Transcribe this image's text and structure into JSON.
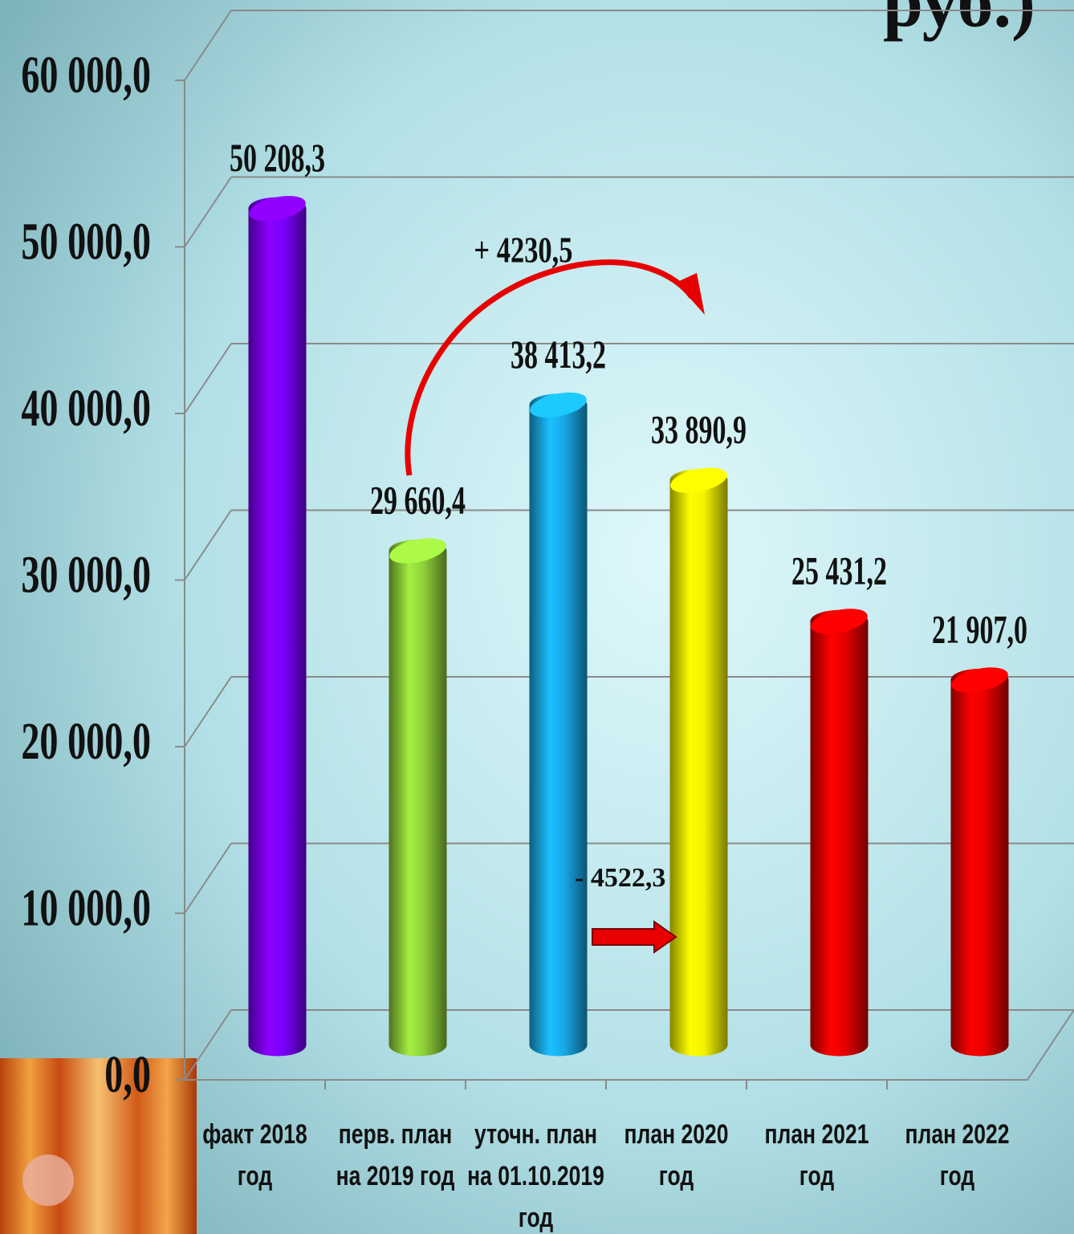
{
  "chart_data": {
    "type": "bar",
    "title": "руб.)",
    "categories": [
      [
        "факт 2018",
        "год"
      ],
      [
        "перв. план",
        "на 2019 год"
      ],
      [
        "уточн. план",
        "на 01.10.2019",
        "год"
      ],
      [
        "план 2020",
        "год"
      ],
      [
        "план 2021",
        "год"
      ],
      [
        "план 2022",
        "год"
      ]
    ],
    "series": [
      {
        "values": [
          50208.3,
          29660.4,
          38413.2,
          33890.9,
          25431.2,
          21907.0
        ],
        "value_labels": [
          "50 208,3",
          "29 660,4",
          "38 413,2",
          "33 890,9",
          "25 431,2",
          "21 907,0"
        ],
        "colors": [
          "#7a00ff",
          "#8fd03a",
          "#18a8e6",
          "#f2f200",
          "#e60000",
          "#e60000"
        ]
      }
    ],
    "ylim": [
      0,
      60000
    ],
    "yticks": [
      {
        "value": 0,
        "label": "0,0"
      },
      {
        "value": 10000,
        "label": "10 000,0"
      },
      {
        "value": 20000,
        "label": "20 000,0"
      },
      {
        "value": 30000,
        "label": "30 000,0"
      },
      {
        "value": 40000,
        "label": "40 000,0"
      },
      {
        "value": 50000,
        "label": "50 000,0"
      },
      {
        "value": 60000,
        "label": "60 000,0"
      }
    ],
    "grid": true,
    "annotations": [
      "+ 4230,5",
      "- 4522,3"
    ]
  }
}
